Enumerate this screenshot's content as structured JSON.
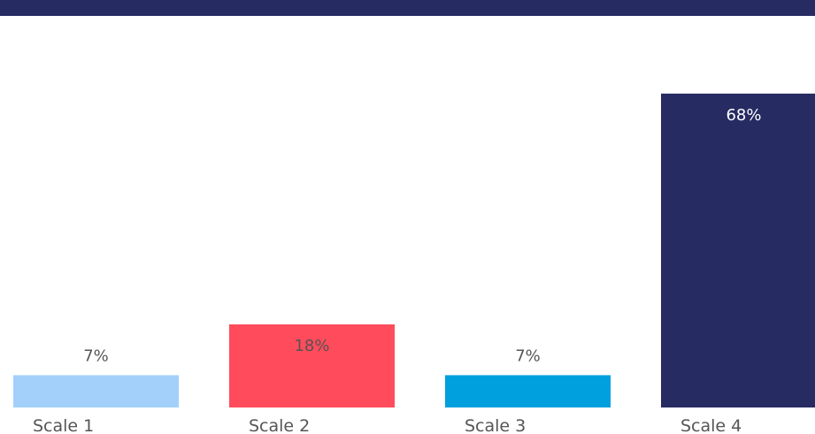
{
  "chart_data": {
    "type": "bar",
    "categories": [
      "Scale 1",
      "Scale 2",
      "Scale 3",
      "Scale 4"
    ],
    "values": [
      7,
      18,
      7,
      68
    ],
    "value_labels": [
      "7%",
      "18%",
      "7%",
      "68%"
    ],
    "unit": "%",
    "ylim": [
      0,
      72
    ],
    "grid": false,
    "legend": "none",
    "colors": [
      "#a3d0fb",
      "#ff4b5c",
      "#009fdd",
      "#262b62"
    ],
    "label_colors": [
      "#555555",
      "#555555",
      "#555555",
      "#ffffff"
    ],
    "title": "",
    "xlabel": "",
    "ylabel": ""
  },
  "theme": {
    "band_color": "#262b62"
  }
}
